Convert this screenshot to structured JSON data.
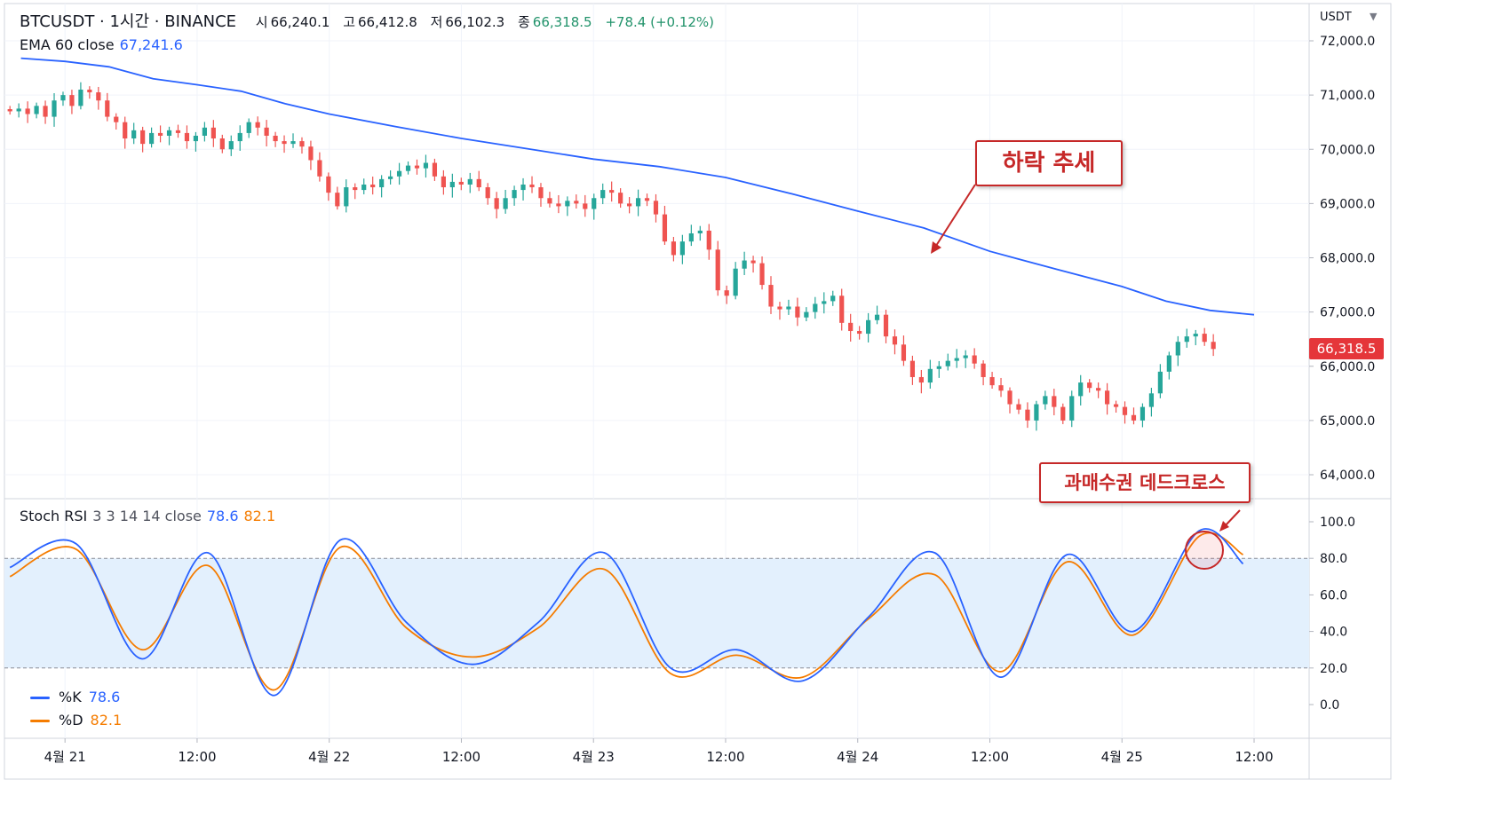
{
  "header": {
    "symbol": "BTCUSDT · 1시간 · BINANCE",
    "open_label": "시",
    "open": "66,240.1",
    "high_label": "고",
    "high": "66,412.8",
    "low_label": "저",
    "low": "66,102.3",
    "close_label": "종",
    "close": "66,318.5",
    "change": "+78.4 (+0.12%)"
  },
  "ema": {
    "label": "EMA 60 close",
    "value": "67,241.6"
  },
  "stoch": {
    "label": "Stoch RSI",
    "params": "3 3 14 14 close",
    "k_value": "78.6",
    "d_value": "82.1"
  },
  "legend": {
    "k_name": "%K",
    "k_value": "78.6",
    "d_name": "%D",
    "d_value": "82.1"
  },
  "axis_unit": "USDT",
  "last_price_tag": "66,318.5",
  "annotations": {
    "downtrend": "하락 추세",
    "death_cross": "과매수권 데드크로스"
  },
  "colors": {
    "up": "#26a69a",
    "down": "#ef5350",
    "ema": "#2962ff",
    "k": "#2962ff",
    "d": "#f57c00",
    "band": "#e3f0fd",
    "annotation": "#c62828"
  },
  "chart_data": [
    {
      "type": "candlestick",
      "title": "BTCUSDT · 1시간 · BINANCE",
      "ylim": [
        63600,
        72400
      ],
      "y_ticks": [
        "72,000.0",
        "71,000.0",
        "70,000.0",
        "69,000.0",
        "68,000.0",
        "67,000.0",
        "66,000.0",
        "65,000.0",
        "64,000.0"
      ],
      "x_ticks": [
        "4월 21",
        "12:00",
        "4월 22",
        "12:00",
        "4월 23",
        "12:00",
        "4월 24",
        "12:00",
        "4월 25",
        "12:00"
      ],
      "x_tick_hours": [
        0,
        12,
        24,
        36,
        48,
        60,
        72,
        84,
        96,
        108
      ],
      "x_range_hours": [
        -5.5,
        113
      ],
      "candles_hourly_close": [
        70700,
        70750,
        70650,
        70800,
        70600,
        70900,
        71000,
        70800,
        71100,
        71050,
        70900,
        70600,
        70500,
        70200,
        70350,
        70100,
        70300,
        70250,
        70350,
        70300,
        70150,
        70250,
        70400,
        70200,
        70000,
        70150,
        70300,
        70500,
        70400,
        70250,
        70150,
        70100,
        70150,
        70050,
        69800,
        69500,
        69200,
        68950,
        69300,
        69250,
        69350,
        69300,
        69450,
        69500,
        69600,
        69700,
        69650,
        69750,
        69500,
        69300,
        69400,
        69350,
        69450,
        69300,
        69100,
        68900,
        69100,
        69250,
        69350,
        69300,
        69100,
        69000,
        68950,
        69050,
        69000,
        68900,
        69100,
        69250,
        69200,
        69000,
        68950,
        69100,
        69050,
        68800,
        68300,
        68050,
        68300,
        68450,
        68500,
        68150,
        67400,
        67300,
        67800,
        67950,
        67900,
        67500,
        67100,
        67050,
        67100,
        66900,
        67000,
        67150,
        67200,
        67300,
        66800,
        66650,
        66600,
        66850,
        66950,
        66550,
        66400,
        66100,
        65800,
        65700,
        65950,
        66000,
        66100,
        66150,
        66200,
        66050,
        65800,
        65650,
        65550,
        65300,
        65200,
        65000,
        65300,
        65450,
        65250,
        65000,
        65450,
        65700,
        65600,
        65550,
        65300,
        65250,
        65100,
        65000,
        65250,
        65500,
        65900,
        66200,
        66450,
        66550,
        66600,
        66450,
        66318.5
      ],
      "ema_series": {
        "name": "EMA 60 close",
        "x_hours": [
          -4,
          0,
          4,
          8,
          12,
          16,
          20,
          24,
          30,
          36,
          42,
          48,
          54,
          60,
          66,
          72,
          78,
          84,
          90,
          96,
          100,
          104,
          108
        ],
        "values": [
          71680,
          71620,
          71520,
          71300,
          71190,
          71070,
          70840,
          70650,
          70420,
          70200,
          70010,
          69820,
          69680,
          69480,
          69180,
          68860,
          68550,
          68120,
          67790,
          67470,
          67200,
          67030,
          66950
        ]
      }
    },
    {
      "type": "line",
      "title": "Stoch RSI",
      "ylim": [
        -10,
        110
      ],
      "y_ticks": [
        "100.0",
        "80.0",
        "60.0",
        "40.0",
        "20.0",
        "0.0"
      ],
      "overbought": 80,
      "oversold": 20,
      "x_hours": [
        -5,
        1,
        7,
        13,
        19,
        25,
        31,
        37,
        43,
        49,
        55,
        61,
        67,
        73,
        79,
        85,
        91,
        97,
        103,
        107
      ],
      "series": [
        {
          "name": "%K",
          "values": [
            75,
            88,
            25,
            83,
            5,
            90,
            45,
            22,
            45,
            83,
            20,
            30,
            13,
            48,
            83,
            15,
            82,
            40,
            95,
            77
          ]
        },
        {
          "name": "%D",
          "values": [
            70,
            85,
            30,
            76,
            8,
            86,
            42,
            26,
            42,
            74,
            17,
            27,
            15,
            47,
            71,
            18,
            78,
            38,
            92,
            82
          ]
        }
      ]
    }
  ]
}
